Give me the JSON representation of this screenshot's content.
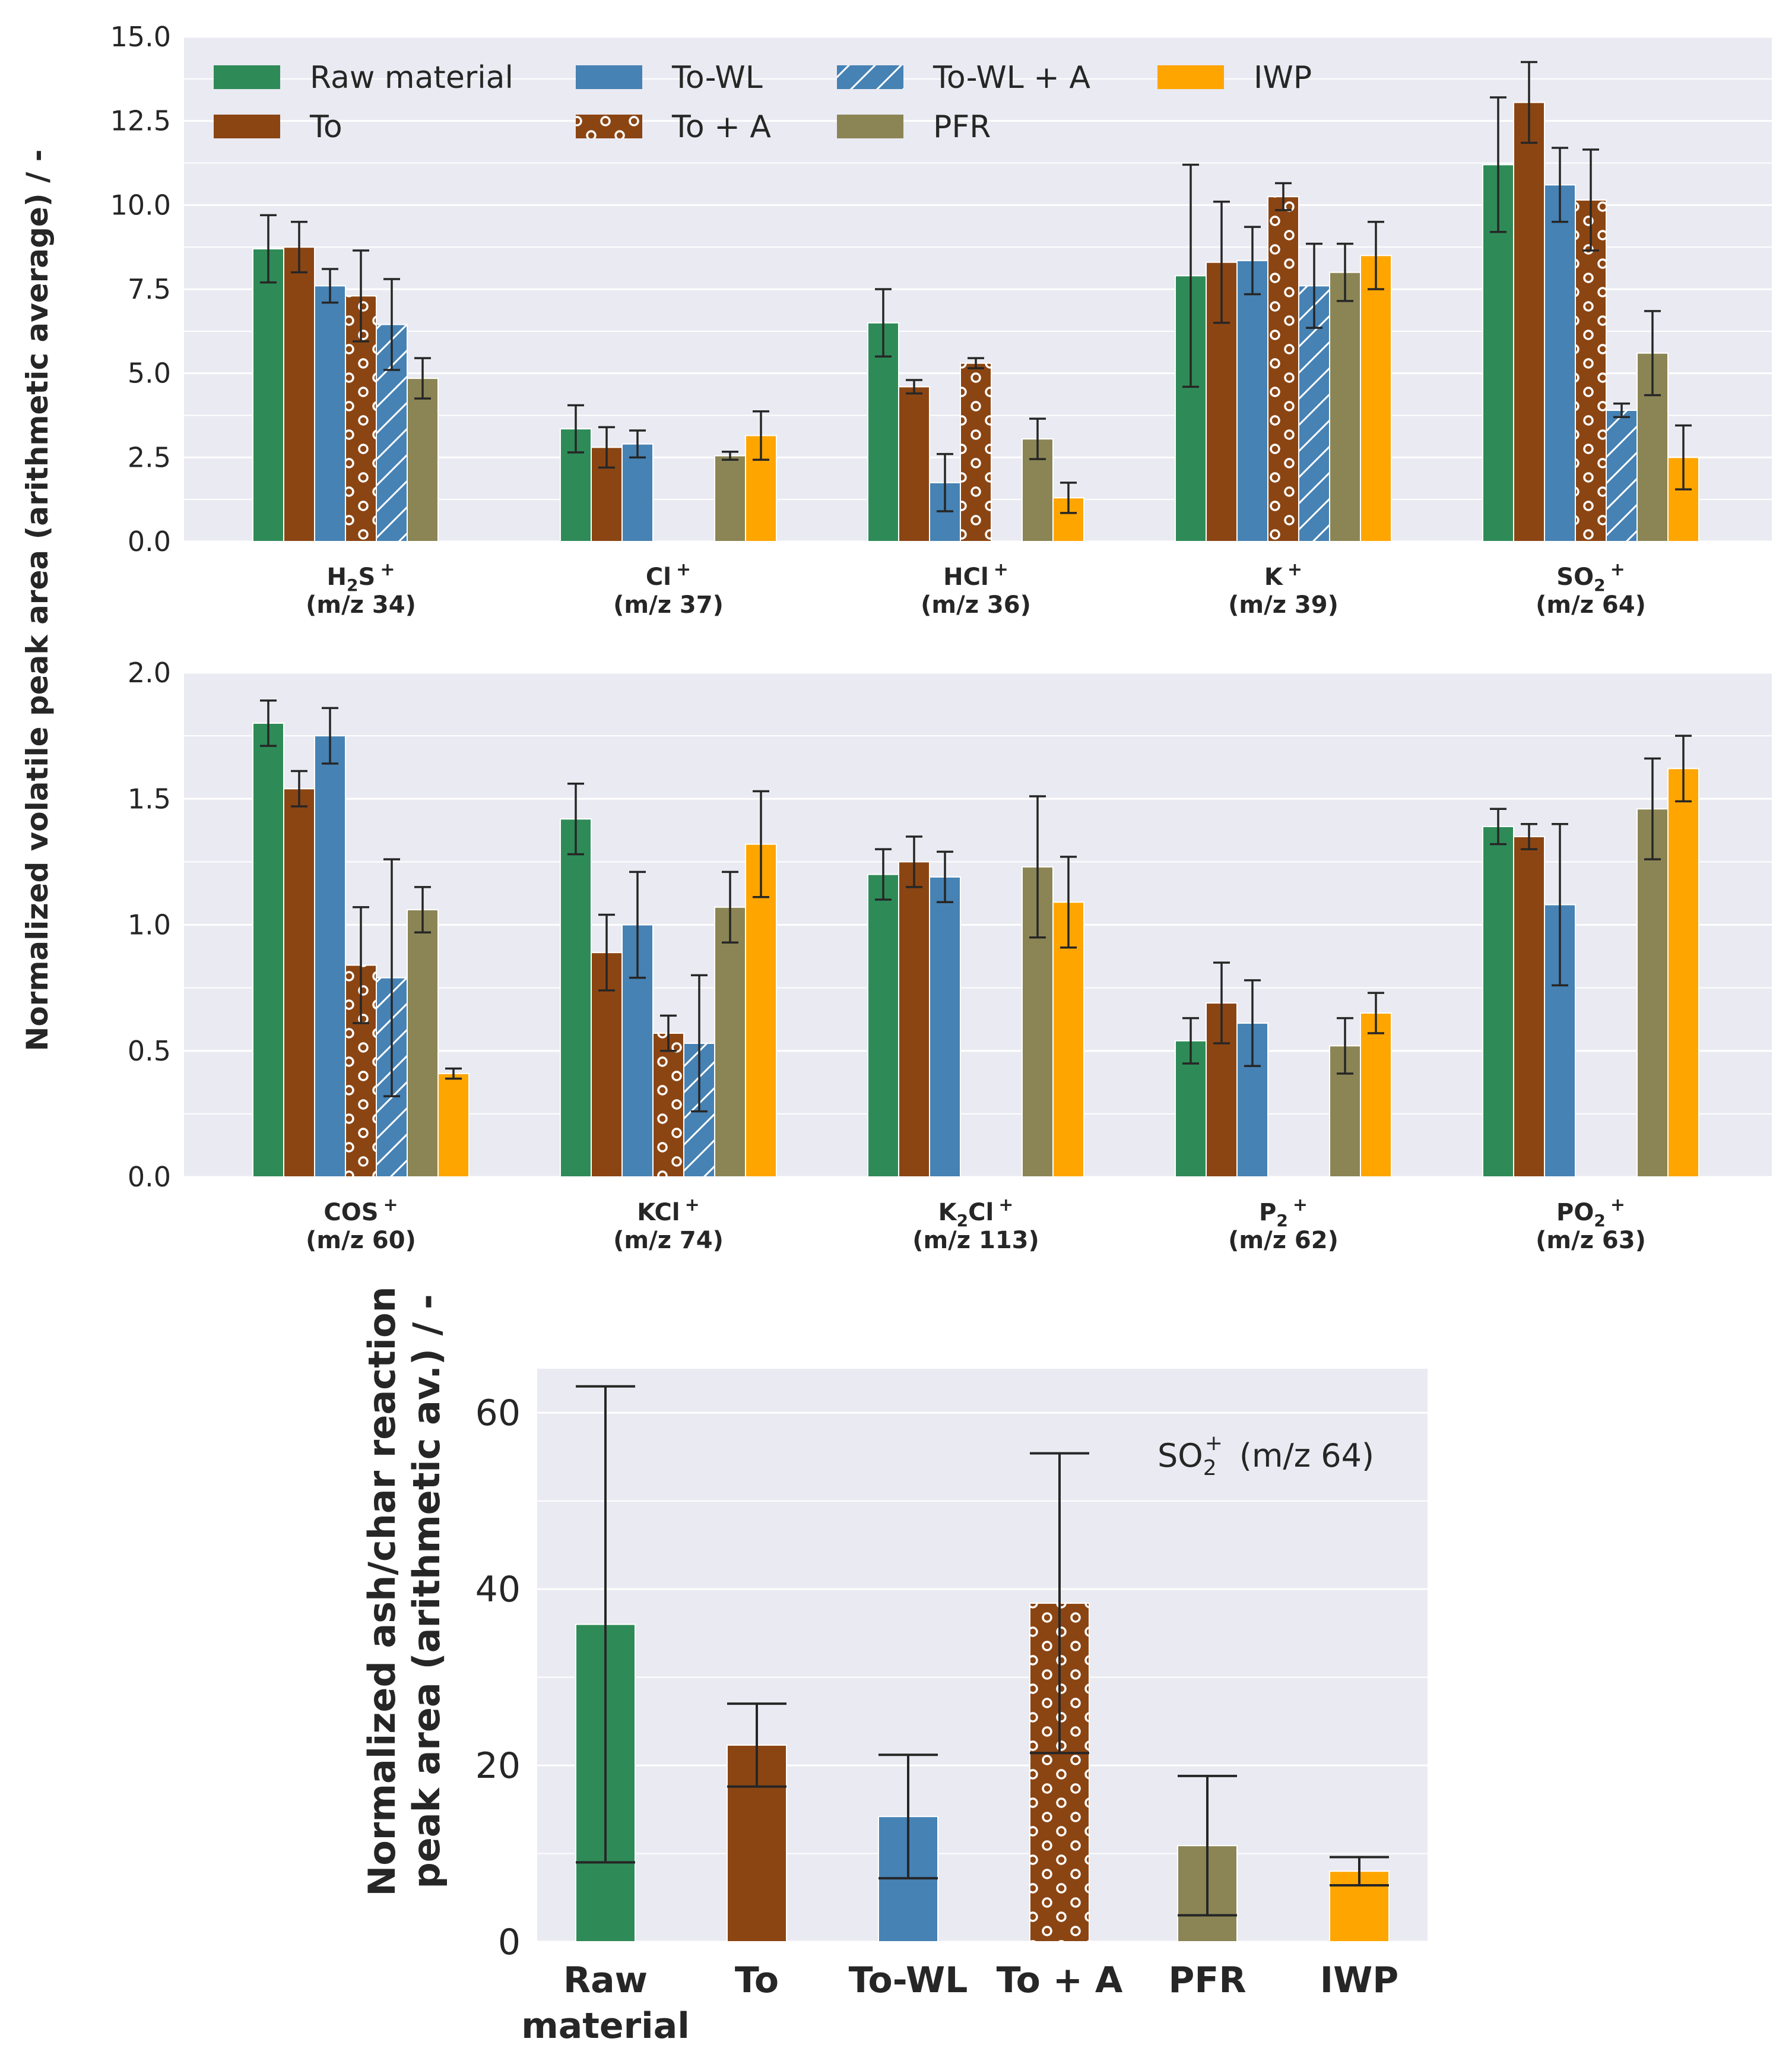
{
  "colors": {
    "raw": "#2e8b57",
    "to": "#8b4513",
    "towl": "#4682b4",
    "towla": "#4682b4",
    "toa": "#8b4513",
    "pfr": "#8b8555",
    "iwp": "#ffa500",
    "bg": "#eaeaf2"
  },
  "ylabel_main": "Normalized volatile peak area (arithmetic average) / -",
  "ylabel_bottom_line1": "Normalized ash/char reaction",
  "ylabel_bottom_line2": "peak area (arithmetic av.) / -",
  "legend": [
    {
      "key": "raw",
      "label": "Raw material"
    },
    {
      "key": "to",
      "label": "To"
    },
    {
      "key": "towl",
      "label": "To-WL"
    },
    {
      "key": "toa",
      "label": "To + A"
    },
    {
      "key": "towla",
      "label": "To-WL + A"
    },
    {
      "key": "pfr",
      "label": "PFR"
    },
    {
      "key": "iwp",
      "label": "IWP"
    }
  ],
  "chart_data": [
    {
      "type": "bar",
      "ylim": [
        0,
        15
      ],
      "yticks": [
        "0.0",
        "2.5",
        "5.0",
        "7.5",
        "10.0",
        "12.5",
        "15.0"
      ],
      "series_order": [
        "raw",
        "to",
        "towl",
        "toa",
        "towla",
        "pfr",
        "iwp"
      ],
      "groups": [
        {
          "name": "H2S+",
          "label_main": "H",
          "label_sub": "2",
          "label_rest": "S",
          "label_sup": "+",
          "mz": "(m/z 34)",
          "bars": {
            "raw": [
              8.7,
              1.0
            ],
            "to": [
              8.75,
              0.75
            ],
            "towl": [
              7.6,
              0.5
            ],
            "toa": [
              7.3,
              1.35
            ],
            "towla": [
              6.45,
              1.35
            ],
            "pfr": [
              4.85,
              0.6
            ]
          }
        },
        {
          "name": "Cl+",
          "label_main": "Cl",
          "label_sub": "",
          "label_rest": "",
          "label_sup": "+",
          "mz": "(m/z 37)",
          "bars": {
            "raw": [
              3.35,
              0.7
            ],
            "to": [
              2.8,
              0.6
            ],
            "towl": [
              2.9,
              0.4
            ],
            "pfr": [
              2.55,
              0.12
            ],
            "iwp": [
              3.15,
              0.72
            ]
          }
        },
        {
          "name": "HCl+",
          "label_main": "HCl",
          "label_sub": "",
          "label_rest": "",
          "label_sup": "+",
          "mz": "(m/z 36)",
          "bars": {
            "raw": [
              6.5,
              1.0
            ],
            "to": [
              4.6,
              0.2
            ],
            "towl": [
              1.75,
              0.85
            ],
            "toa": [
              5.3,
              0.15
            ],
            "pfr": [
              3.05,
              0.6
            ],
            "iwp": [
              1.3,
              0.45
            ]
          }
        },
        {
          "name": "K+",
          "label_main": "K",
          "label_sub": "",
          "label_rest": "",
          "label_sup": "+",
          "mz": "(m/z 39)",
          "bars": {
            "raw": [
              7.9,
              3.3
            ],
            "to": [
              8.3,
              1.8
            ],
            "towl": [
              8.35,
              1.0
            ],
            "toa": [
              10.25,
              0.4
            ],
            "towla": [
              7.6,
              1.25
            ],
            "pfr": [
              8.0,
              0.85
            ],
            "iwp": [
              8.5,
              1.0
            ]
          }
        },
        {
          "name": "SO2+",
          "label_main": "SO",
          "label_sub": "2",
          "label_rest": "",
          "label_sup": "+",
          "mz": "(m/z 64)",
          "bars": {
            "raw": [
              11.2,
              2.0
            ],
            "to": [
              13.05,
              1.2
            ],
            "towl": [
              10.6,
              1.1
            ],
            "toa": [
              10.15,
              1.5
            ],
            "towla": [
              3.9,
              0.2
            ],
            "pfr": [
              5.6,
              1.25
            ],
            "iwp": [
              2.5,
              0.95
            ]
          }
        }
      ]
    },
    {
      "type": "bar",
      "ylim": [
        0,
        2.0
      ],
      "yticks": [
        "0.0",
        "0.5",
        "1.0",
        "1.5",
        "2.0"
      ],
      "series_order": [
        "raw",
        "to",
        "towl",
        "toa",
        "towla",
        "pfr",
        "iwp"
      ],
      "groups": [
        {
          "name": "COS+",
          "label_main": "COS",
          "label_sub": "",
          "label_rest": "",
          "label_sup": "+",
          "mz": "(m/z 60)",
          "bars": {
            "raw": [
              1.8,
              0.09
            ],
            "to": [
              1.54,
              0.07
            ],
            "towl": [
              1.75,
              0.11
            ],
            "toa": [
              0.84,
              0.23
            ],
            "towla": [
              0.79,
              0.47
            ],
            "pfr": [
              1.06,
              0.09
            ],
            "iwp": [
              0.41,
              0.02
            ]
          }
        },
        {
          "name": "KCl+",
          "label_main": "KCl",
          "label_sub": "",
          "label_rest": "",
          "label_sup": "+",
          "mz": "(m/z 74)",
          "bars": {
            "raw": [
              1.42,
              0.14
            ],
            "to": [
              0.89,
              0.15
            ],
            "towl": [
              1.0,
              0.21
            ],
            "toa": [
              0.57,
              0.07
            ],
            "towla": [
              0.53,
              0.27
            ],
            "pfr": [
              1.07,
              0.14
            ],
            "iwp": [
              1.32,
              0.21
            ]
          }
        },
        {
          "name": "K2Cl+",
          "label_main": "K",
          "label_sub": "2",
          "label_rest": "Cl",
          "label_sup": "+",
          "mz": "(m/z 113)",
          "bars": {
            "raw": [
              1.2,
              0.1
            ],
            "to": [
              1.25,
              0.1
            ],
            "towl": [
              1.19,
              0.1
            ],
            "pfr": [
              1.23,
              0.28
            ],
            "iwp": [
              1.09,
              0.18
            ]
          }
        },
        {
          "name": "P2+",
          "label_main": "P",
          "label_sub": "2",
          "label_rest": "",
          "label_sup": "+",
          "mz": "(m/z 62)",
          "bars": {
            "raw": [
              0.54,
              0.09
            ],
            "to": [
              0.69,
              0.16
            ],
            "towl": [
              0.61,
              0.17
            ],
            "pfr": [
              0.52,
              0.11
            ],
            "iwp": [
              0.65,
              0.08
            ]
          }
        },
        {
          "name": "PO2+",
          "label_main": "PO",
          "label_sub": "2",
          "label_rest": "",
          "label_sup": "+",
          "mz": "(m/z 63)",
          "bars": {
            "raw": [
              1.39,
              0.07
            ],
            "to": [
              1.35,
              0.05
            ],
            "towl": [
              1.08,
              0.32
            ],
            "pfr": [
              1.46,
              0.2
            ],
            "iwp": [
              1.62,
              0.13
            ]
          }
        }
      ]
    },
    {
      "type": "bar",
      "ylim": [
        0,
        65
      ],
      "yticks": [
        "0",
        "20",
        "40",
        "60"
      ],
      "annotation": {
        "main": "SO",
        "sub": "2",
        "sup": "+",
        "rest": "(m/z 64)"
      },
      "categories": [
        {
          "key": "raw",
          "line1": "Raw",
          "line2": "material",
          "value": 36.0,
          "err": 27.0
        },
        {
          "key": "to",
          "line1": "To",
          "line2": "",
          "value": 22.3,
          "err": 4.7
        },
        {
          "key": "towl",
          "line1": "To-WL",
          "line2": "",
          "value": 14.2,
          "err": 7.0
        },
        {
          "key": "toa",
          "line1": "To + A",
          "line2": "",
          "value": 38.4,
          "err": 17.0
        },
        {
          "key": "pfr",
          "line1": "PFR",
          "line2": "",
          "value": 10.9,
          "err": 7.9
        },
        {
          "key": "iwp",
          "line1": "IWP",
          "line2": "",
          "value": 8.0,
          "err": 1.6
        }
      ]
    }
  ]
}
